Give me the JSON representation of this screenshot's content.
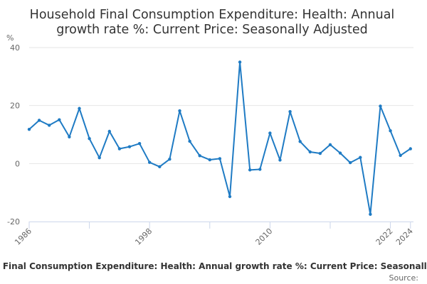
{
  "chart_data": {
    "type": "line",
    "title_lines": [
      "Household Final Consumption Expenditure: Health: Annual",
      "growth rate %: Current Price: Seasonally Adjusted"
    ],
    "y_unit": "%",
    "ylim": [
      -20,
      40
    ],
    "y_ticks": [
      -20,
      0,
      20,
      40
    ],
    "xlim": [
      1986,
      2024.3
    ],
    "x_tick_marks": [
      1986,
      1992,
      1998,
      2004,
      2010,
      2016,
      2022,
      2024
    ],
    "x_tick_labels": [
      "1986",
      "1998",
      "2010",
      "2022",
      "2024"
    ],
    "grid": "horizontal",
    "legend_position": "bottom",
    "series": [
      {
        "name": "Household Final Consumption Expenditure: Health: Annual growth rate %: Current Price: Seasonally Adjusted",
        "color": "#1f7bc4",
        "x": [
          1986,
          1987,
          1988,
          1989,
          1990,
          1991,
          1992,
          1993,
          1994,
          1995,
          1996,
          1997,
          1998,
          1999,
          2000,
          2001,
          2002,
          2003,
          2004,
          2005,
          2006,
          2007,
          2008,
          2009,
          2010,
          2011,
          2012,
          2013,
          2014,
          2015,
          2016,
          2017,
          2018,
          2019,
          2020,
          2021,
          2022,
          2023,
          2024
        ],
        "values": [
          11.8,
          14.9,
          13.2,
          15.1,
          9.2,
          19.0,
          8.6,
          2.0,
          11.1,
          5.1,
          5.8,
          6.9,
          0.4,
          -1.1,
          1.5,
          18.2,
          7.7,
          2.7,
          1.3,
          1.7,
          -11.4,
          35.0,
          -2.2,
          -2.0,
          10.5,
          1.2,
          17.9,
          7.6,
          4.0,
          3.5,
          6.5,
          3.6,
          0.3,
          2.1,
          -17.5,
          19.8,
          11.3,
          2.8,
          5.1
        ]
      }
    ]
  },
  "legend": {
    "label": "Household Final Consumption Expenditure: Health: Annual growth rate %: Current Price: Seasonally Adjusted"
  },
  "credits": {
    "text": "Source:"
  }
}
